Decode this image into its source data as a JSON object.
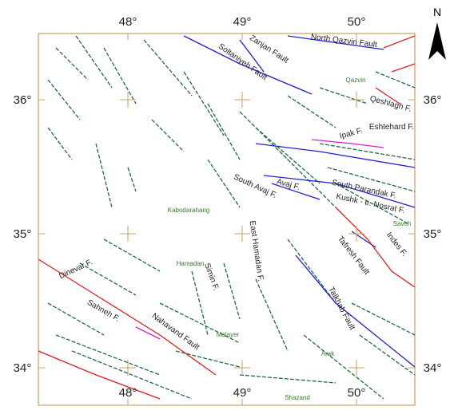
{
  "north_arrow": {
    "label": "N"
  },
  "graticule": {
    "lon_labels": [
      "48°",
      "49°",
      "50°"
    ],
    "lat_labels": [
      "36°",
      "35°",
      "34°"
    ]
  },
  "faults": [
    "Zanjan Fault",
    "Soltaniyeh Fault",
    "North Qazvin Fault",
    "Qeshlagh F.",
    "Eshtehard F.",
    "Ipak F.",
    "Avaj F.",
    "South Avaj F.",
    "South Parandak F.",
    "Kushk - e. Nosrat F.",
    "East Hamadan F.",
    "Tafresh Fault",
    "Indes F.",
    "Talkhab Fault",
    "Dinevar F.",
    "Sahneh F.",
    "Nahavand Fault",
    "Simin F."
  ],
  "cities": [
    "Qazvin",
    "Kabodarahang",
    "Hamadan",
    "Malayer",
    "Arak",
    "Shazand",
    "Saveh"
  ]
}
